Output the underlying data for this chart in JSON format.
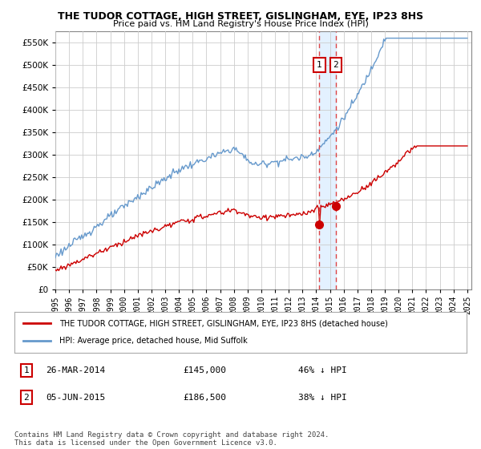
{
  "title": "THE TUDOR COTTAGE, HIGH STREET, GISLINGHAM, EYE, IP23 8HS",
  "subtitle": "Price paid vs. HM Land Registry's House Price Index (HPI)",
  "legend_label_red": "THE TUDOR COTTAGE, HIGH STREET, GISLINGHAM, EYE, IP23 8HS (detached house)",
  "legend_label_blue": "HPI: Average price, detached house, Mid Suffolk",
  "event1_label": "26-MAR-2014",
  "event1_price": "£145,000",
  "event1_hpi": "46% ↓ HPI",
  "event1_year": 2014.23,
  "event1_price_val": 145000,
  "event2_label": "05-JUN-2015",
  "event2_price": "£186,500",
  "event2_hpi": "38% ↓ HPI",
  "event2_year": 2015.43,
  "event2_price_val": 186500,
  "footer": "Contains HM Land Registry data © Crown copyright and database right 2024.\nThis data is licensed under the Open Government Licence v3.0.",
  "ylim": [
    0,
    575000
  ],
  "red_color": "#cc0000",
  "blue_color": "#6699cc",
  "vline_color": "#dd4444",
  "shade_color": "#ddeeff",
  "background_color": "#ffffff",
  "grid_color": "#cccccc"
}
